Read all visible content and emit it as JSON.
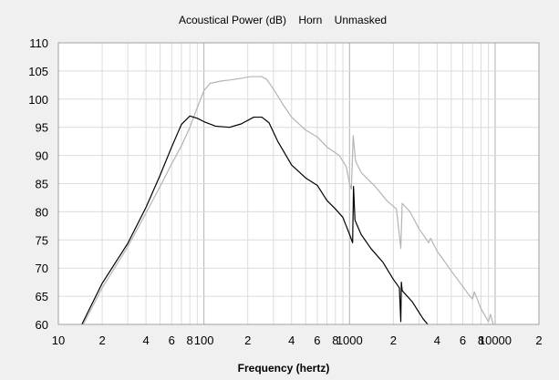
{
  "chart_data": {
    "type": "line",
    "title": "Acoustical Power (dB)    Horn    Unmasked",
    "xlabel": "Frequency (hertz)",
    "ylabel": "",
    "xscale": "log",
    "xlim": [
      10,
      20000
    ],
    "ylim": [
      60,
      110
    ],
    "grid": true,
    "y_ticks": [
      60,
      65,
      70,
      75,
      80,
      85,
      90,
      95,
      100,
      105,
      110
    ],
    "x_ticks": [
      {
        "value": 10,
        "label": "10"
      },
      {
        "value": 20,
        "label": "2"
      },
      {
        "value": 40,
        "label": "4"
      },
      {
        "value": 60,
        "label": "6"
      },
      {
        "value": 80,
        "label": "8"
      },
      {
        "value": 100,
        "label": "100"
      },
      {
        "value": 200,
        "label": "2"
      },
      {
        "value": 400,
        "label": "4"
      },
      {
        "value": 600,
        "label": "6"
      },
      {
        "value": 800,
        "label": "8"
      },
      {
        "value": 1000,
        "label": "1000"
      },
      {
        "value": 2000,
        "label": "2"
      },
      {
        "value": 4000,
        "label": "4"
      },
      {
        "value": 6000,
        "label": "6"
      },
      {
        "value": 8000,
        "label": "8"
      },
      {
        "value": 10000,
        "label": "10000"
      },
      {
        "value": 20000,
        "label": "2"
      }
    ],
    "series": [
      {
        "color": "#000000",
        "points": [
          [
            14.5,
            60
          ],
          [
            20,
            67.3
          ],
          [
            30,
            74.4
          ],
          [
            40,
            80.8
          ],
          [
            50,
            86.5
          ],
          [
            60,
            91.5
          ],
          [
            70,
            95.5
          ],
          [
            80,
            97
          ],
          [
            90,
            96.6
          ],
          [
            100,
            96
          ],
          [
            120,
            95.2
          ],
          [
            150,
            95
          ],
          [
            180,
            95.6
          ],
          [
            220,
            96.8
          ],
          [
            250,
            96.8
          ],
          [
            280,
            95.8
          ],
          [
            320,
            92.6
          ],
          [
            400,
            88.3
          ],
          [
            500,
            86
          ],
          [
            600,
            84.7
          ],
          [
            700,
            82
          ],
          [
            800,
            80.5
          ],
          [
            900,
            79
          ],
          [
            1000,
            76
          ],
          [
            1050,
            74.5
          ],
          [
            1065,
            84.5
          ],
          [
            1090,
            78.5
          ],
          [
            1200,
            76
          ],
          [
            1400,
            73.5
          ],
          [
            1700,
            71
          ],
          [
            2000,
            68
          ],
          [
            2200,
            66.5
          ],
          [
            2250,
            60.5
          ],
          [
            2270,
            67.5
          ],
          [
            2300,
            66
          ],
          [
            2700,
            64
          ],
          [
            3200,
            61
          ],
          [
            3500,
            59.8
          ]
        ]
      },
      {
        "color": "#b4b4b4",
        "points": [
          [
            14.5,
            59.5
          ],
          [
            20,
            66.5
          ],
          [
            30,
            73.8
          ],
          [
            40,
            79.8
          ],
          [
            50,
            84.5
          ],
          [
            60,
            88.5
          ],
          [
            70,
            91.7
          ],
          [
            80,
            95
          ],
          [
            90,
            98.5
          ],
          [
            100,
            101.5
          ],
          [
            110,
            102.8
          ],
          [
            130,
            103.2
          ],
          [
            150,
            103.4
          ],
          [
            180,
            103.7
          ],
          [
            210,
            104
          ],
          [
            250,
            104
          ],
          [
            270,
            103.5
          ],
          [
            300,
            101.8
          ],
          [
            350,
            99
          ],
          [
            400,
            96.8
          ],
          [
            500,
            94.5
          ],
          [
            600,
            93.3
          ],
          [
            700,
            91.5
          ],
          [
            850,
            90
          ],
          [
            950,
            88
          ],
          [
            1000,
            85
          ],
          [
            1030,
            84
          ],
          [
            1060,
            93.5
          ],
          [
            1100,
            89
          ],
          [
            1200,
            87
          ],
          [
            1500,
            84.5
          ],
          [
            1800,
            82
          ],
          [
            2100,
            80.5
          ],
          [
            2250,
            73.5
          ],
          [
            2300,
            81.5
          ],
          [
            2600,
            80
          ],
          [
            3000,
            77
          ],
          [
            3500,
            74.5
          ],
          [
            3600,
            75.3
          ],
          [
            4000,
            73
          ],
          [
            5000,
            69.5
          ],
          [
            6500,
            65.5
          ],
          [
            7000,
            64.5
          ],
          [
            7200,
            65.8
          ],
          [
            8000,
            62.8
          ],
          [
            9000,
            60.5
          ],
          [
            9300,
            61.8
          ],
          [
            9800,
            59.5
          ]
        ]
      }
    ]
  }
}
